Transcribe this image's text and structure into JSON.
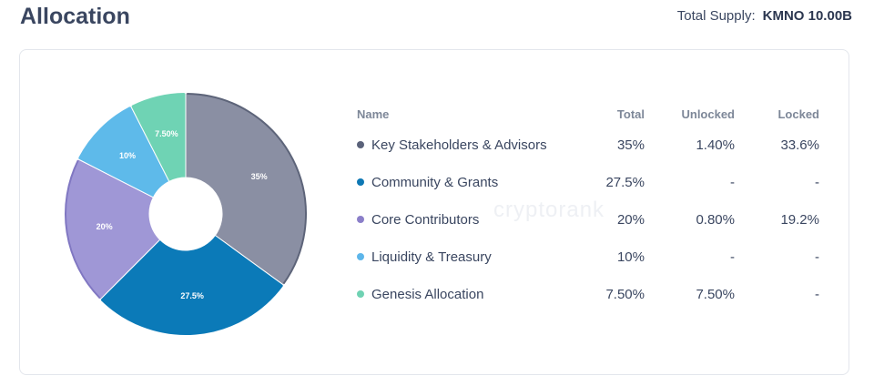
{
  "header": {
    "title": "Allocation",
    "total_supply_label": "Total Supply:",
    "total_supply_value": "KMNO 10.00B"
  },
  "watermark": "cryptorank",
  "table": {
    "columns": [
      "Name",
      "Total",
      "Unlocked",
      "Locked"
    ],
    "rows": [
      {
        "name": "Key Stakeholders & Advisors",
        "total": "35%",
        "unlocked": "1.40%",
        "locked": "33.6%",
        "color": "#5a627a"
      },
      {
        "name": "Community & Grants",
        "total": "27.5%",
        "unlocked": "-",
        "locked": "-",
        "color": "#0e78b4"
      },
      {
        "name": "Core Contributors",
        "total": "20%",
        "unlocked": "0.80%",
        "locked": "19.2%",
        "color": "#8b7fc9"
      },
      {
        "name": "Liquidity & Treasury",
        "total": "10%",
        "unlocked": "-",
        "locked": "-",
        "color": "#5db6ea"
      },
      {
        "name": "Genesis Allocation",
        "total": "7.50%",
        "unlocked": "7.50%",
        "locked": "-",
        "color": "#6fd2b3"
      }
    ]
  },
  "chart_data": {
    "type": "pie",
    "donut": true,
    "categories": [
      "Key Stakeholders & Advisors",
      "Community & Grants",
      "Core Contributors",
      "Liquidity & Treasury",
      "Genesis Allocation"
    ],
    "values": [
      35,
      27.5,
      20,
      10,
      7.5
    ],
    "labels": [
      "35%",
      "27.5%",
      "20%",
      "10%",
      "7.50%"
    ],
    "colors": [
      "#8a8fa3",
      "#0b7ab8",
      "#9f97d6",
      "#5ebaea",
      "#6fd3b4"
    ],
    "stroke_colors": [
      "#5d6479",
      "#0b7ab8",
      "#8077c2",
      "#5ebaea",
      "#6fd3b4"
    ]
  }
}
